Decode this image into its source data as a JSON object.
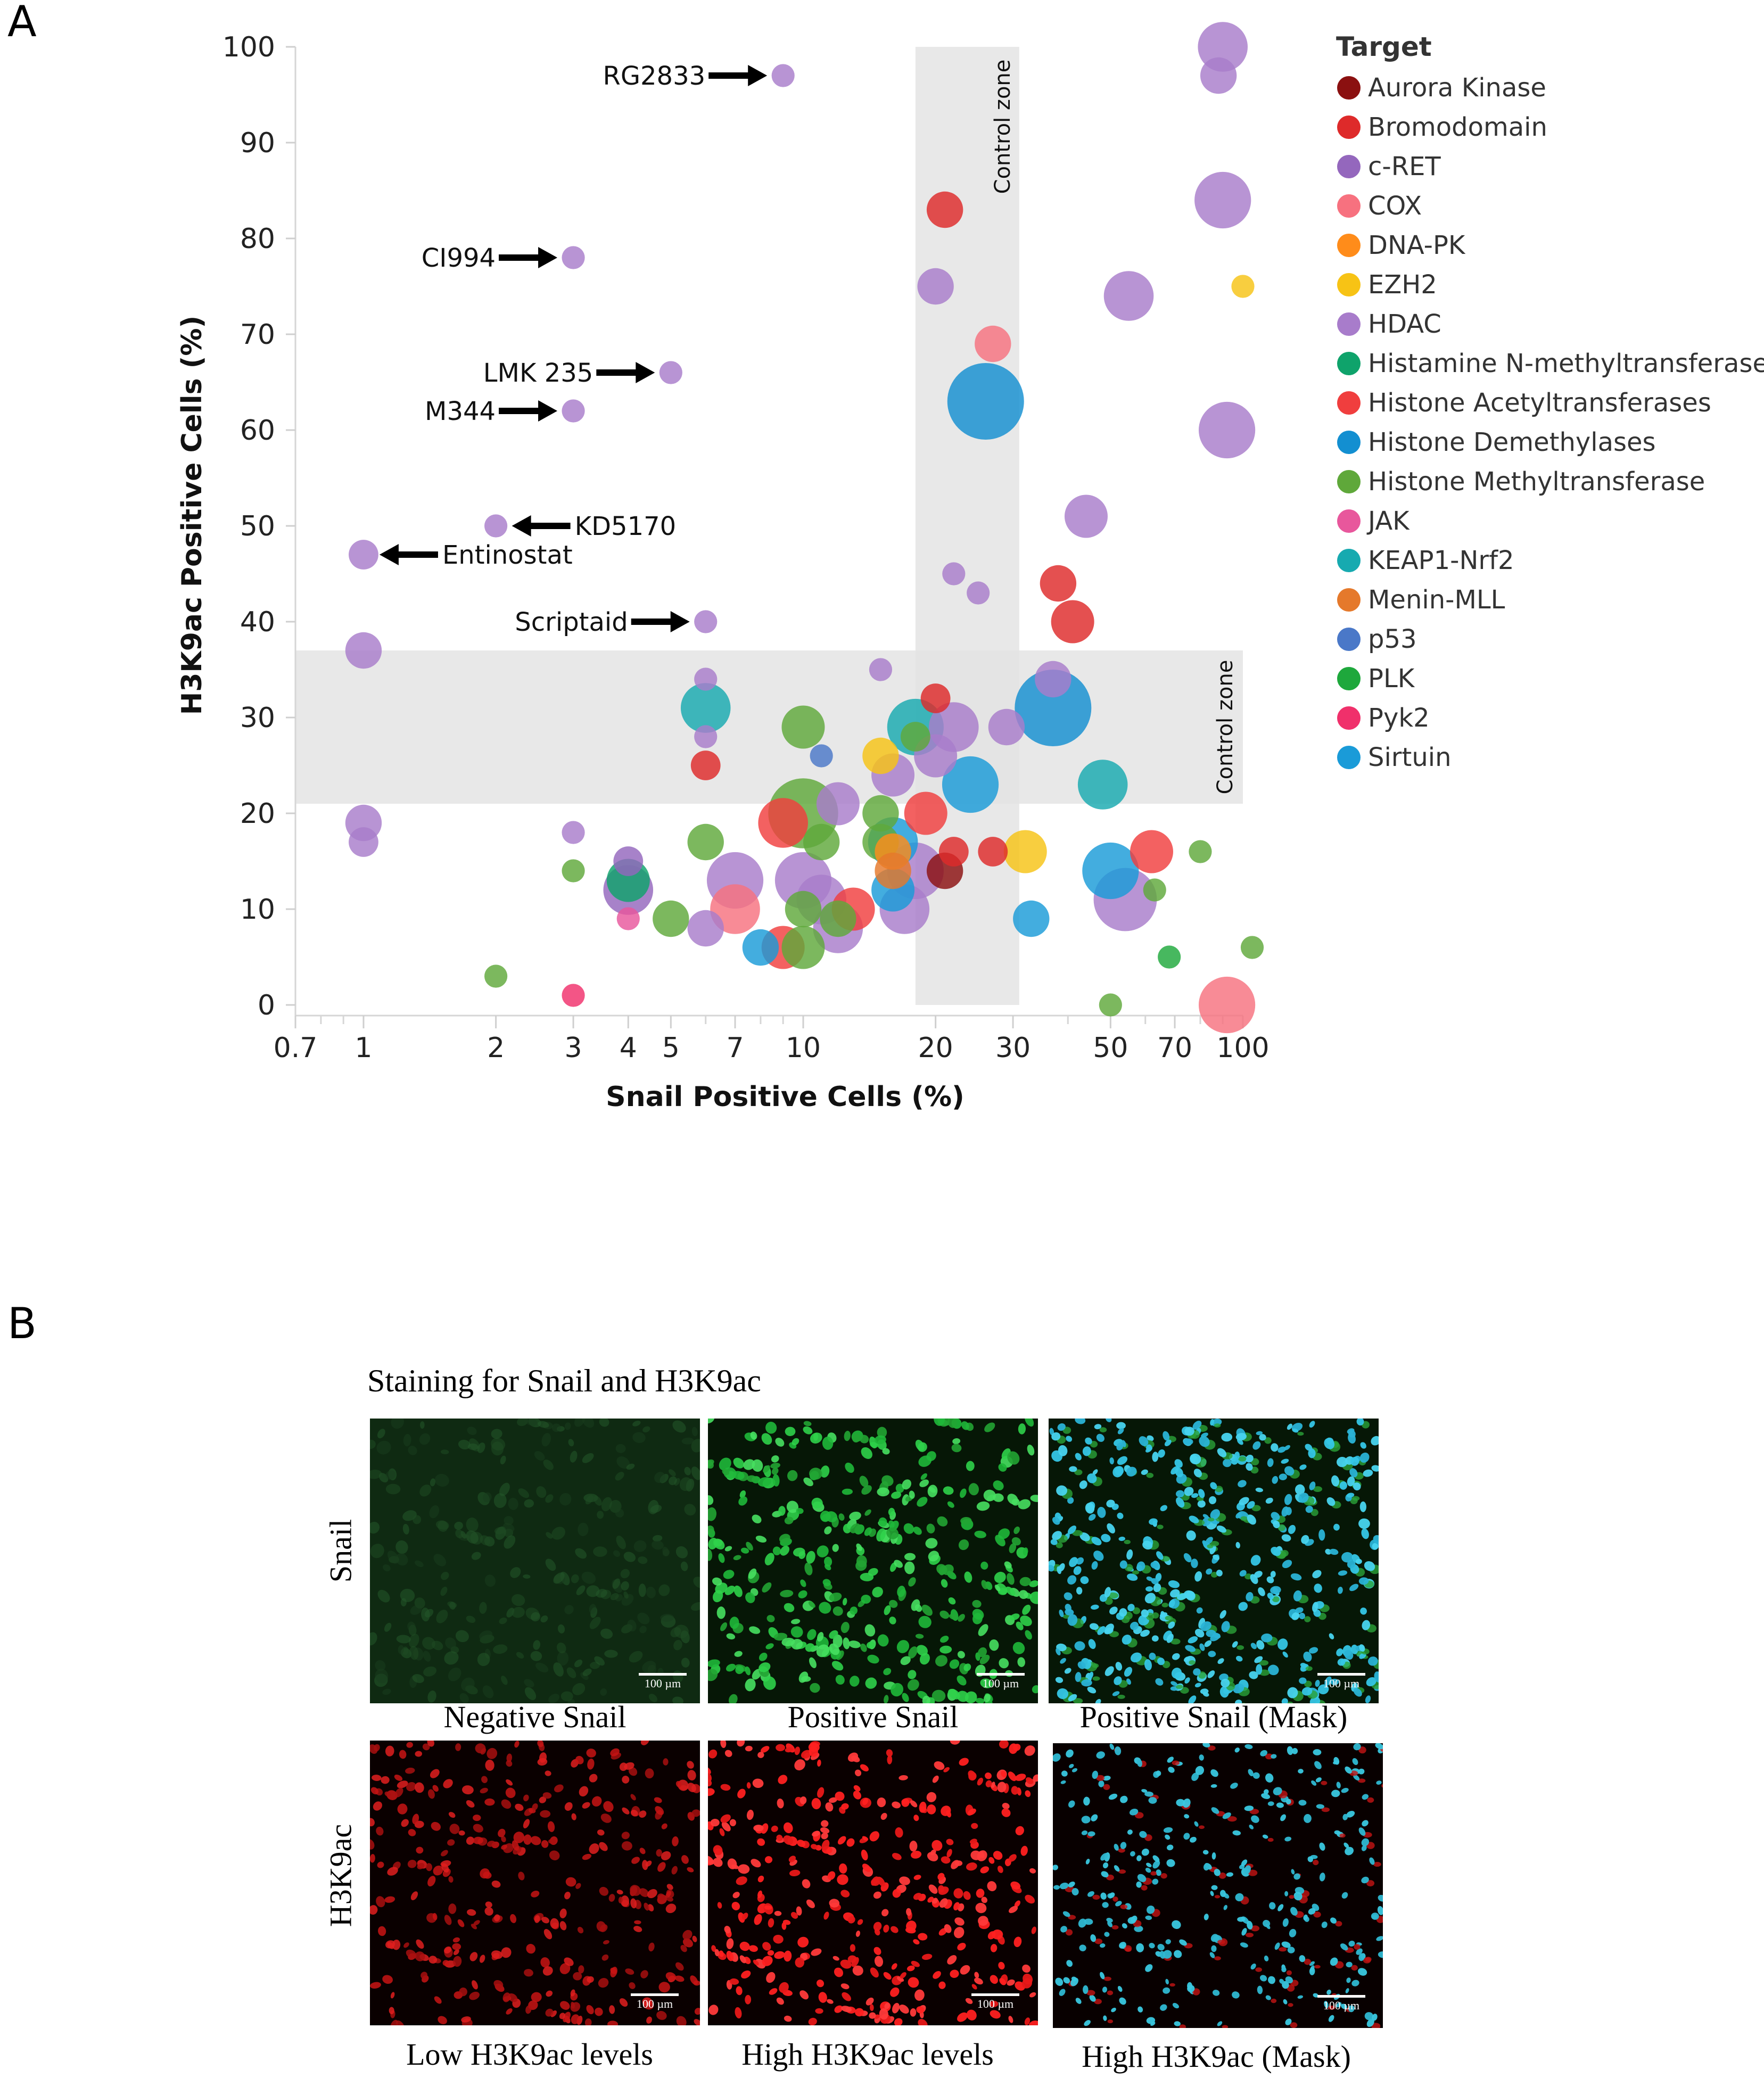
{
  "panel_a": {
    "letter": "A"
  },
  "panel_b": {
    "letter": "B",
    "title": "Staining for Snail and H3K9ac",
    "row_labels": [
      "Snail",
      "H3K9ac"
    ],
    "scale_bar": "100 µm",
    "captions": [
      [
        "Negative Snail",
        "Positive Snail",
        "Positive Snail (Mask)"
      ],
      [
        "Low H3K9ac levels",
        "High H3K9ac levels",
        "High H3K9ac (Mask)"
      ]
    ]
  },
  "chart_data": {
    "type": "scatter",
    "subtype": "bubble",
    "xlabel": "Snail Positive Cells (%)",
    "ylabel": "H3K9ac Positive Cells (%)",
    "xscale": "log",
    "xlim": [
      0.7,
      100
    ],
    "ylim": [
      0,
      100
    ],
    "xticks": [
      0.7,
      1,
      2,
      3,
      4,
      5,
      7,
      10,
      20,
      30,
      50,
      70,
      100
    ],
    "yticks": [
      0,
      10,
      20,
      30,
      40,
      50,
      60,
      70,
      80,
      90,
      100
    ],
    "control_zone_label": "Control zone",
    "control_zones": [
      {
        "axis": "x",
        "range": [
          18,
          31
        ]
      },
      {
        "axis": "y",
        "range": [
          21,
          37
        ]
      }
    ],
    "legend_title": "Target",
    "legend": [
      {
        "name": "Aurora Kinase",
        "color": "#8B1010"
      },
      {
        "name": "Bromodomain",
        "color": "#DE2A2A"
      },
      {
        "name": "c-RET",
        "color": "#9467BD"
      },
      {
        "name": "COX",
        "color": "#F7717F"
      },
      {
        "name": "DNA-PK",
        "color": "#FF8C1A"
      },
      {
        "name": "EZH2",
        "color": "#F7C315"
      },
      {
        "name": "HDAC",
        "color": "#A87CCB"
      },
      {
        "name": "Histamine N-methyltransferase",
        "color": "#0FA36B"
      },
      {
        "name": "Histone Acetyltransferases",
        "color": "#F03E3E"
      },
      {
        "name": "Histone Demethylases",
        "color": "#138FD1"
      },
      {
        "name": "Histone Methyltransferase",
        "color": "#5FA83A"
      },
      {
        "name": "JAK",
        "color": "#E8579C"
      },
      {
        "name": "KEAP1-Nrf2",
        "color": "#17AAB0"
      },
      {
        "name": "Menin-MLL",
        "color": "#E5792B"
      },
      {
        "name": "p53",
        "color": "#4A78C8"
      },
      {
        "name": "PLK",
        "color": "#1EA83C"
      },
      {
        "name": "Pyk2",
        "color": "#F0306B"
      },
      {
        "name": "Sirtuin",
        "color": "#1A9BD8"
      }
    ],
    "annotations": [
      {
        "label": "RG2833",
        "x": 9,
        "y": 97,
        "side": "left"
      },
      {
        "label": "CI994",
        "x": 3,
        "y": 78,
        "side": "left"
      },
      {
        "label": "LMK 235",
        "x": 5,
        "y": 66,
        "side": "left"
      },
      {
        "label": "M344",
        "x": 3,
        "y": 62,
        "side": "left"
      },
      {
        "label": "KD5170",
        "x": 2,
        "y": 50,
        "side": "right"
      },
      {
        "label": "Entinostat",
        "x": 1,
        "y": 47,
        "side": "right"
      },
      {
        "label": "Scriptaid",
        "x": 6,
        "y": 40,
        "side": "left"
      }
    ],
    "points": [
      {
        "x": 9,
        "y": 97,
        "size": 2,
        "target": "HDAC"
      },
      {
        "x": 3,
        "y": 78,
        "size": 2,
        "target": "HDAC"
      },
      {
        "x": 5,
        "y": 66,
        "size": 2,
        "target": "HDAC"
      },
      {
        "x": 3,
        "y": 62,
        "size": 2,
        "target": "HDAC"
      },
      {
        "x": 2,
        "y": 50,
        "size": 2,
        "target": "HDAC"
      },
      {
        "x": 1,
        "y": 47,
        "size": 3,
        "target": "HDAC"
      },
      {
        "x": 6,
        "y": 40,
        "size": 2,
        "target": "HDAC"
      },
      {
        "x": 1,
        "y": 37,
        "size": 4,
        "target": "HDAC"
      },
      {
        "x": 1,
        "y": 19,
        "size": 4,
        "target": "HDAC"
      },
      {
        "x": 1,
        "y": 17,
        "size": 3,
        "target": "HDAC"
      },
      {
        "x": 3,
        "y": 18,
        "size": 2,
        "target": "HDAC"
      },
      {
        "x": 6,
        "y": 34,
        "size": 2,
        "target": "HDAC"
      },
      {
        "x": 6,
        "y": 28,
        "size": 2,
        "target": "HDAC"
      },
      {
        "x": 15,
        "y": 35,
        "size": 2,
        "target": "HDAC"
      },
      {
        "x": 22,
        "y": 45,
        "size": 2,
        "target": "HDAC"
      },
      {
        "x": 25,
        "y": 43,
        "size": 2,
        "target": "HDAC"
      },
      {
        "x": 90,
        "y": 100,
        "size": 6,
        "target": "HDAC"
      },
      {
        "x": 88,
        "y": 97,
        "size": 4,
        "target": "HDAC"
      },
      {
        "x": 90,
        "y": 84,
        "size": 7,
        "target": "HDAC"
      },
      {
        "x": 92,
        "y": 60,
        "size": 7,
        "target": "HDAC"
      },
      {
        "x": 55,
        "y": 74,
        "size": 6,
        "target": "HDAC"
      },
      {
        "x": 44,
        "y": 51,
        "size": 5,
        "target": "HDAC"
      },
      {
        "x": 20,
        "y": 75,
        "size": 4,
        "target": "HDAC"
      },
      {
        "x": 22,
        "y": 29,
        "size": 6,
        "target": "HDAC"
      },
      {
        "x": 20,
        "y": 26,
        "size": 5,
        "target": "HDAC"
      },
      {
        "x": 29,
        "y": 29,
        "size": 4,
        "target": "HDAC"
      },
      {
        "x": 37,
        "y": 34,
        "size": 4,
        "target": "HDAC"
      },
      {
        "x": 16,
        "y": 24,
        "size": 5,
        "target": "HDAC"
      },
      {
        "x": 12,
        "y": 21,
        "size": 5,
        "target": "HDAC"
      },
      {
        "x": 7,
        "y": 13,
        "size": 7,
        "target": "HDAC"
      },
      {
        "x": 10,
        "y": 13,
        "size": 7,
        "target": "HDAC"
      },
      {
        "x": 11,
        "y": 11,
        "size": 6,
        "target": "HDAC"
      },
      {
        "x": 12,
        "y": 8,
        "size": 6,
        "target": "HDAC"
      },
      {
        "x": 17,
        "y": 10,
        "size": 6,
        "target": "HDAC"
      },
      {
        "x": 18,
        "y": 14,
        "size": 7,
        "target": "HDAC"
      },
      {
        "x": 54,
        "y": 11,
        "size": 8,
        "target": "HDAC"
      },
      {
        "x": 6,
        "y": 8,
        "size": 4,
        "target": "HDAC"
      },
      {
        "x": 4,
        "y": 12,
        "size": 6,
        "target": "c-RET"
      },
      {
        "x": 4,
        "y": 15,
        "size": 3,
        "target": "c-RET"
      },
      {
        "x": 21,
        "y": 83,
        "size": 4,
        "target": "Bromodomain"
      },
      {
        "x": 38,
        "y": 44,
        "size": 4,
        "target": "Bromodomain"
      },
      {
        "x": 41,
        "y": 40,
        "size": 5,
        "target": "Bromodomain"
      },
      {
        "x": 20,
        "y": 32,
        "size": 3,
        "target": "Bromodomain"
      },
      {
        "x": 6,
        "y": 25,
        "size": 3,
        "target": "Bromodomain"
      },
      {
        "x": 22,
        "y": 16,
        "size": 3,
        "target": "Bromodomain"
      },
      {
        "x": 27,
        "y": 16,
        "size": 3,
        "target": "Bromodomain"
      },
      {
        "x": 62,
        "y": 16,
        "size": 5,
        "target": "Histone Acetyltransferases"
      },
      {
        "x": 19,
        "y": 20,
        "size": 5,
        "target": "Histone Acetyltransferases"
      },
      {
        "x": 9,
        "y": 19,
        "size": 6,
        "target": "Histone Acetyltransferases"
      },
      {
        "x": 13,
        "y": 10,
        "size": 5,
        "target": "Histone Acetyltransferases"
      },
      {
        "x": 9,
        "y": 6,
        "size": 5,
        "target": "Histone Acetyltransferases"
      },
      {
        "x": 27,
        "y": 69,
        "size": 4,
        "target": "COX"
      },
      {
        "x": 92,
        "y": 0,
        "size": 7,
        "target": "COX"
      },
      {
        "x": 7,
        "y": 10,
        "size": 6,
        "target": "COX"
      },
      {
        "x": 26,
        "y": 63,
        "size": 10,
        "target": "Histone Demethylases"
      },
      {
        "x": 37,
        "y": 31,
        "size": 10,
        "target": "Histone Demethylases"
      },
      {
        "x": 24,
        "y": 23,
        "size": 7,
        "target": "Sirtuin"
      },
      {
        "x": 16,
        "y": 17,
        "size": 6,
        "target": "Sirtuin"
      },
      {
        "x": 16,
        "y": 12,
        "size": 5,
        "target": "Sirtuin"
      },
      {
        "x": 50,
        "y": 14,
        "size": 7,
        "target": "Sirtuin"
      },
      {
        "x": 33,
        "y": 9,
        "size": 4,
        "target": "Sirtuin"
      },
      {
        "x": 8,
        "y": 6,
        "size": 4,
        "target": "Sirtuin"
      },
      {
        "x": 18,
        "y": 29,
        "size": 7,
        "target": "KEAP1-Nrf2"
      },
      {
        "x": 6,
        "y": 31,
        "size": 6,
        "target": "KEAP1-Nrf2"
      },
      {
        "x": 48,
        "y": 23,
        "size": 6,
        "target": "KEAP1-Nrf2"
      },
      {
        "x": 4,
        "y": 13,
        "size": 5,
        "target": "Histamine N-methyltransferase"
      },
      {
        "x": 10,
        "y": 20,
        "size": 9,
        "target": "Histone Methyltransferase"
      },
      {
        "x": 10,
        "y": 29,
        "size": 5,
        "target": "Histone Methyltransferase"
      },
      {
        "x": 6,
        "y": 17,
        "size": 4,
        "target": "Histone Methyltransferase"
      },
      {
        "x": 11,
        "y": 17,
        "size": 4,
        "target": "Histone Methyltransferase"
      },
      {
        "x": 15,
        "y": 20,
        "size": 4,
        "target": "Histone Methyltransferase"
      },
      {
        "x": 15,
        "y": 17,
        "size": 4,
        "target": "Histone Methyltransferase"
      },
      {
        "x": 5,
        "y": 9,
        "size": 4,
        "target": "Histone Methyltransferase"
      },
      {
        "x": 10,
        "y": 10,
        "size": 4,
        "target": "Histone Methyltransferase"
      },
      {
        "x": 12,
        "y": 9,
        "size": 4,
        "target": "Histone Methyltransferase"
      },
      {
        "x": 10,
        "y": 6,
        "size": 5,
        "target": "Histone Methyltransferase"
      },
      {
        "x": 18,
        "y": 28,
        "size": 3,
        "target": "Histone Methyltransferase"
      },
      {
        "x": 3,
        "y": 14,
        "size": 2,
        "target": "Histone Methyltransferase"
      },
      {
        "x": 2,
        "y": 3,
        "size": 2,
        "target": "Histone Methyltransferase"
      },
      {
        "x": 50,
        "y": 0,
        "size": 2,
        "target": "Histone Methyltransferase"
      },
      {
        "x": 63,
        "y": 12,
        "size": 2,
        "target": "Histone Methyltransferase"
      },
      {
        "x": 80,
        "y": 16,
        "size": 2,
        "target": "Histone Methyltransferase"
      },
      {
        "x": 105,
        "y": 6,
        "size": 2,
        "target": "Histone Methyltransferase"
      },
      {
        "x": 68,
        "y": 5,
        "size": 2,
        "target": "PLK"
      },
      {
        "x": 15,
        "y": 26,
        "size": 4,
        "target": "EZH2"
      },
      {
        "x": 32,
        "y": 16,
        "size": 5,
        "target": "EZH2"
      },
      {
        "x": 100,
        "y": 75,
        "size": 2,
        "target": "EZH2"
      },
      {
        "x": 16,
        "y": 16,
        "size": 4,
        "target": "DNA-PK"
      },
      {
        "x": 21,
        "y": 14,
        "size": 4,
        "target": "Aurora Kinase"
      },
      {
        "x": 16,
        "y": 14,
        "size": 4,
        "target": "Menin-MLL"
      },
      {
        "x": 11,
        "y": 26,
        "size": 2,
        "target": "p53"
      },
      {
        "x": 4,
        "y": 9,
        "size": 2,
        "target": "JAK"
      },
      {
        "x": 3,
        "y": 1,
        "size": 2,
        "target": "Pyk2"
      }
    ]
  }
}
